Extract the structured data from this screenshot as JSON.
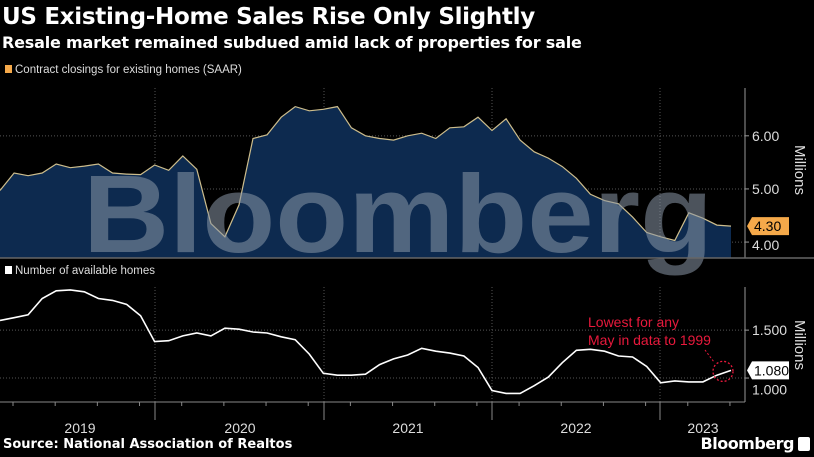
{
  "header": {
    "title": "US Existing-Home Sales Rise Only Slightly",
    "subtitle": "Resale market remained subdued amid lack of properties for sale"
  },
  "footer": {
    "source": "Source: National Association of Realtos",
    "brand": "Bloomberg"
  },
  "watermark": "Bloomberg",
  "colors": {
    "background": "#000000",
    "area_fill": "#0d2a4f",
    "sales_line": "#cdbd8c",
    "sales_legend": "#f5a94a",
    "inventory_line": "#ffffff",
    "annotation": "#e8193c",
    "grid": "#555555"
  },
  "chart_data": [
    {
      "type": "area",
      "legend": "Contract closings for existing homes (SAAR)",
      "ylabel": "Millions",
      "ylim": [
        3.7,
        6.9
      ],
      "yticks": [
        "4.00",
        "5.00",
        "6.00"
      ],
      "ytick_values": [
        4,
        5,
        6
      ],
      "x_start": "2019-01",
      "x_end": "2023-05",
      "frequency": "monthly",
      "last_value_label": "4.30",
      "values": [
        4.97,
        5.3,
        5.25,
        5.3,
        5.47,
        5.4,
        5.43,
        5.47,
        5.3,
        5.28,
        5.27,
        5.45,
        5.35,
        5.62,
        5.37,
        4.35,
        4.1,
        4.7,
        5.95,
        6.02,
        6.35,
        6.55,
        6.47,
        6.5,
        6.55,
        6.15,
        6.0,
        5.95,
        5.92,
        6.0,
        6.05,
        5.95,
        6.15,
        6.17,
        6.35,
        6.1,
        6.32,
        5.92,
        5.7,
        5.58,
        5.42,
        5.2,
        4.9,
        4.78,
        4.72,
        4.47,
        4.18,
        4.1,
        4.03,
        4.55,
        4.45,
        4.32,
        4.3
      ],
      "grid": true
    },
    {
      "type": "line",
      "legend": "Number of available homes",
      "ylabel": "Millions",
      "ylim": [
        0.75,
        1.95
      ],
      "yticks": [
        "1.000",
        "1.500"
      ],
      "ytick_values": [
        1.0,
        1.5
      ],
      "x_start": "2019-01",
      "x_end": "2023-05",
      "frequency": "monthly",
      "last_value_label": "1.080",
      "values": [
        1.6,
        1.63,
        1.66,
        1.83,
        1.91,
        1.92,
        1.9,
        1.83,
        1.81,
        1.77,
        1.65,
        1.38,
        1.39,
        1.44,
        1.47,
        1.44,
        1.52,
        1.51,
        1.48,
        1.47,
        1.43,
        1.4,
        1.25,
        1.05,
        1.03,
        1.03,
        1.04,
        1.14,
        1.2,
        1.24,
        1.31,
        1.28,
        1.26,
        1.23,
        1.11,
        0.87,
        0.84,
        0.84,
        0.92,
        1.01,
        1.16,
        1.29,
        1.3,
        1.28,
        1.23,
        1.22,
        1.12,
        0.95,
        0.97,
        0.96,
        0.96,
        1.03,
        1.08
      ],
      "annotation": {
        "text_line1": "Lowest for any",
        "text_line2": "May in data to 1999",
        "points_to": "2023-05"
      },
      "grid": true
    }
  ],
  "xaxis": {
    "tick_labels": [
      "2019",
      "2020",
      "2021",
      "2022",
      "2023"
    ]
  }
}
